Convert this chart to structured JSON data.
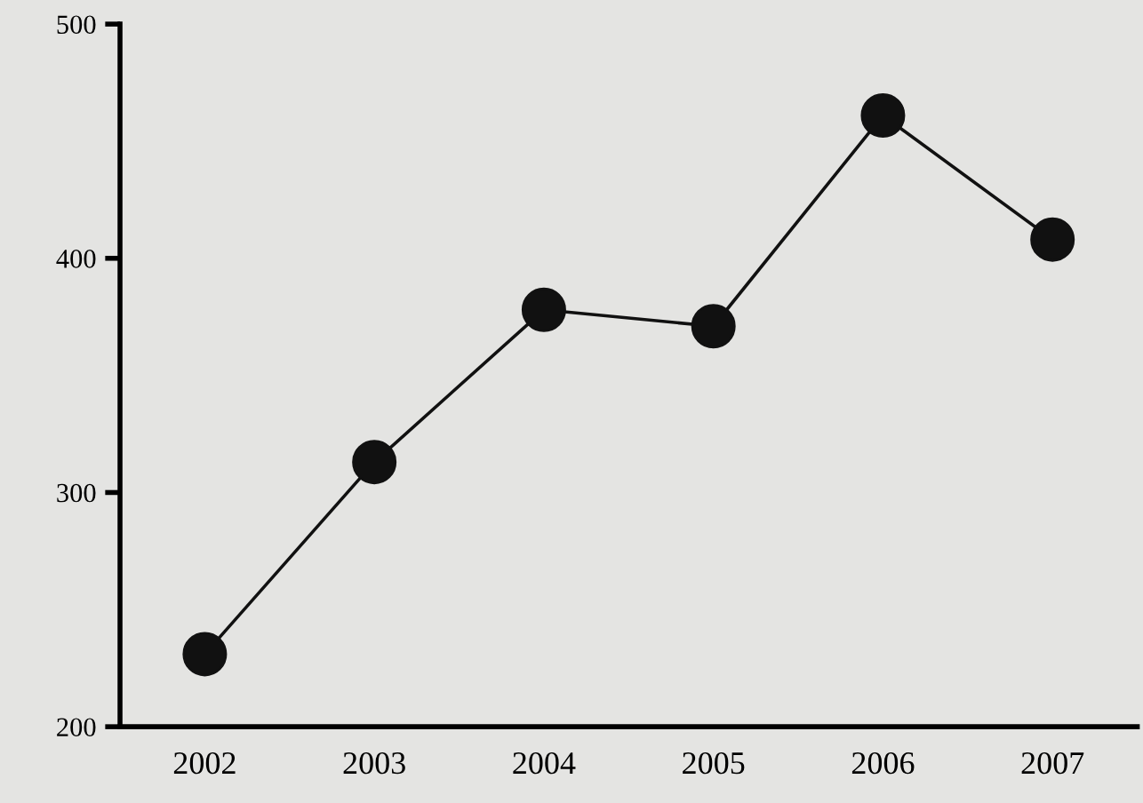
{
  "chart_data": {
    "type": "line",
    "categories": [
      "2002",
      "2003",
      "2004",
      "2005",
      "2006",
      "2007"
    ],
    "series": [
      {
        "color": "#111111",
        "values": [
          231,
          313,
          378,
          371,
          461,
          408
        ]
      }
    ],
    "ylim": [
      200,
      500
    ],
    "yticks": [
      200,
      300,
      400,
      500
    ],
    "marker": "circle",
    "line_style": "solid",
    "grid": false,
    "legend": false
  }
}
